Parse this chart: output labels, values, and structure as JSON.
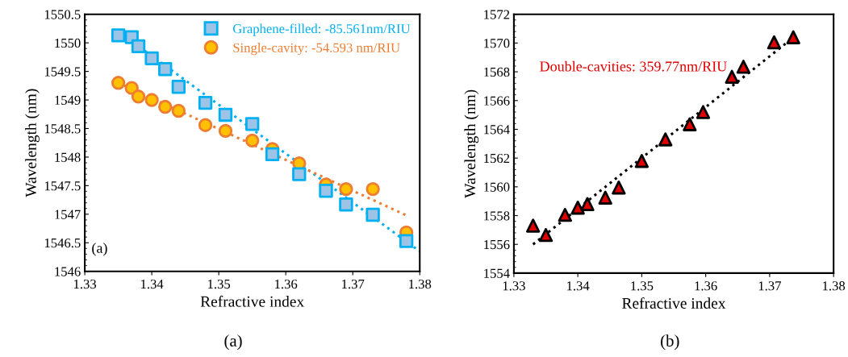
{
  "chart_data": [
    {
      "type": "scatter",
      "xlabel": "Refractive index",
      "ylabel": "Wavelength (nm)",
      "xlim": [
        1.33,
        1.38
      ],
      "xticks": [
        1.33,
        1.34,
        1.35,
        1.36,
        1.37,
        1.38
      ],
      "ylim": [
        1546,
        1550.5
      ],
      "yticks": [
        1546,
        1546.5,
        1547,
        1547.5,
        1548,
        1548.5,
        1549,
        1549.5,
        1550,
        1550.5
      ],
      "grid": false,
      "legend": "top right",
      "series": [
        {
          "name": "Graphene-filled: -85.561nm/RIU",
          "marker": "square",
          "color": "#9dc3e6",
          "x": [
            1.335,
            1.337,
            1.338,
            1.34,
            1.342,
            1.344,
            1.348,
            1.351,
            1.355,
            1.358,
            1.362,
            1.366,
            1.369,
            1.373,
            1.378
          ],
          "values": [
            1550.13,
            1550.1,
            1549.94,
            1549.73,
            1549.54,
            1549.23,
            1548.95,
            1548.74,
            1548.58,
            1548.05,
            1547.7,
            1547.41,
            1547.17,
            1546.99,
            1546.53
          ]
        },
        {
          "name": "Single-cavity: -54.593 nm/RIU",
          "marker": "circle",
          "color": "#ffc000",
          "x": [
            1.335,
            1.337,
            1.338,
            1.34,
            1.342,
            1.344,
            1.348,
            1.351,
            1.355,
            1.358,
            1.362,
            1.366,
            1.369,
            1.373,
            1.378
          ],
          "values": [
            1549.3,
            1549.21,
            1549.06,
            1549.0,
            1548.88,
            1548.81,
            1548.56,
            1548.46,
            1548.29,
            1548.14,
            1547.89,
            1547.52,
            1547.44,
            1547.44,
            1546.68
          ]
        },
        {
          "type": "line",
          "line_style": "dotted",
          "color": "#00b0f0",
          "x": [
            1.335,
            1.38
          ],
          "values": [
            1550.2,
            1546.35
          ]
        },
        {
          "type": "line",
          "line_style": "dotted",
          "color": "#ed7d31",
          "x": [
            1.335,
            1.378
          ],
          "values": [
            1549.3,
            1546.98
          ]
        }
      ],
      "annotations": [
        "(a)",
        "(a)"
      ]
    },
    {
      "type": "scatter",
      "xlabel": "Refractive index",
      "ylabel": "Wavelength (nm)",
      "xlim": [
        1.33,
        1.38
      ],
      "xticks": [
        1.33,
        1.34,
        1.35,
        1.36,
        1.37,
        1.38
      ],
      "ylim": [
        1554,
        1572
      ],
      "yticks": [
        1554,
        1556,
        1558,
        1560,
        1562,
        1564,
        1566,
        1568,
        1570,
        1572
      ],
      "grid": false,
      "legend": false,
      "series": [
        {
          "name": "Double-cavities: 359.77nm/RIU",
          "marker": "triangle",
          "color": "#e00000",
          "x": [
            1.333,
            1.335,
            1.338,
            1.34,
            1.3415,
            1.3443,
            1.3464,
            1.35,
            1.3537,
            1.3575,
            1.3596,
            1.3641,
            1.3659,
            1.3707,
            1.3737
          ],
          "values": [
            1557.3,
            1556.65,
            1558.05,
            1558.55,
            1558.8,
            1559.25,
            1559.95,
            1561.8,
            1563.3,
            1564.35,
            1565.2,
            1567.65,
            1568.35,
            1570.05,
            1570.4
          ]
        },
        {
          "type": "line",
          "line_style": "dotted",
          "color": "#000000",
          "x": [
            1.333,
            1.3743
          ],
          "values": [
            1556.0,
            1570.6
          ]
        }
      ],
      "annotations": [
        "(b)"
      ]
    }
  ]
}
